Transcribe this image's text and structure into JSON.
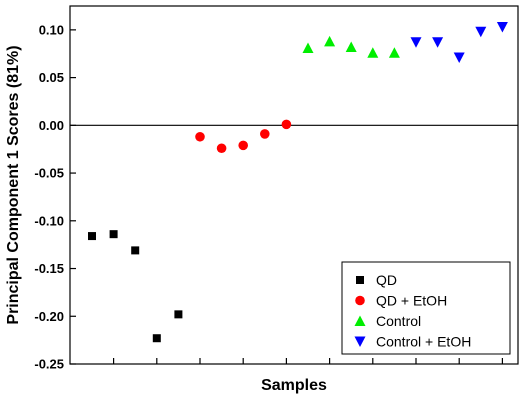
{
  "chart_data": {
    "type": "scatter",
    "xlabel": "Samples",
    "ylabel": "Principal Component 1 Scores (81%)",
    "x_range": [
      0,
      20
    ],
    "ylim": [
      -0.25,
      0.125
    ],
    "y_ticks": [
      "-0.25",
      "-0.20",
      "-0.15",
      "-0.10",
      "-0.05",
      "0.00",
      "0.05",
      "0.10"
    ],
    "y_tick_values": [
      -0.25,
      -0.2,
      -0.15,
      -0.1,
      -0.05,
      0.0,
      0.05,
      0.1
    ],
    "x_tick_values": [
      1,
      3,
      5,
      7,
      9,
      11,
      13,
      15,
      17,
      19
    ],
    "zero_line": 0,
    "grid": false,
    "legend_position": "bottom-right",
    "series": [
      {
        "name": "QD",
        "marker": "square",
        "color": "#000000",
        "x": [
          0,
          1,
          2,
          3,
          4
        ],
        "y": [
          -0.116,
          -0.114,
          -0.131,
          -0.223,
          -0.198
        ]
      },
      {
        "name": "QD + EtOH",
        "marker": "circle",
        "color": "#ff0000",
        "x": [
          5,
          6,
          7,
          8,
          9
        ],
        "y": [
          -0.012,
          -0.024,
          -0.021,
          -0.009,
          0.001
        ]
      },
      {
        "name": "Control",
        "marker": "triangle-up",
        "color": "#00ee00",
        "x": [
          10,
          11,
          12,
          13,
          14
        ],
        "y": [
          0.081,
          0.088,
          0.082,
          0.076,
          0.076
        ]
      },
      {
        "name": "Control + EtOH",
        "marker": "triangle-down",
        "color": "#0000ff",
        "x": [
          15,
          16,
          17,
          18,
          19
        ],
        "y": [
          0.087,
          0.087,
          0.071,
          0.098,
          0.103
        ]
      }
    ]
  }
}
